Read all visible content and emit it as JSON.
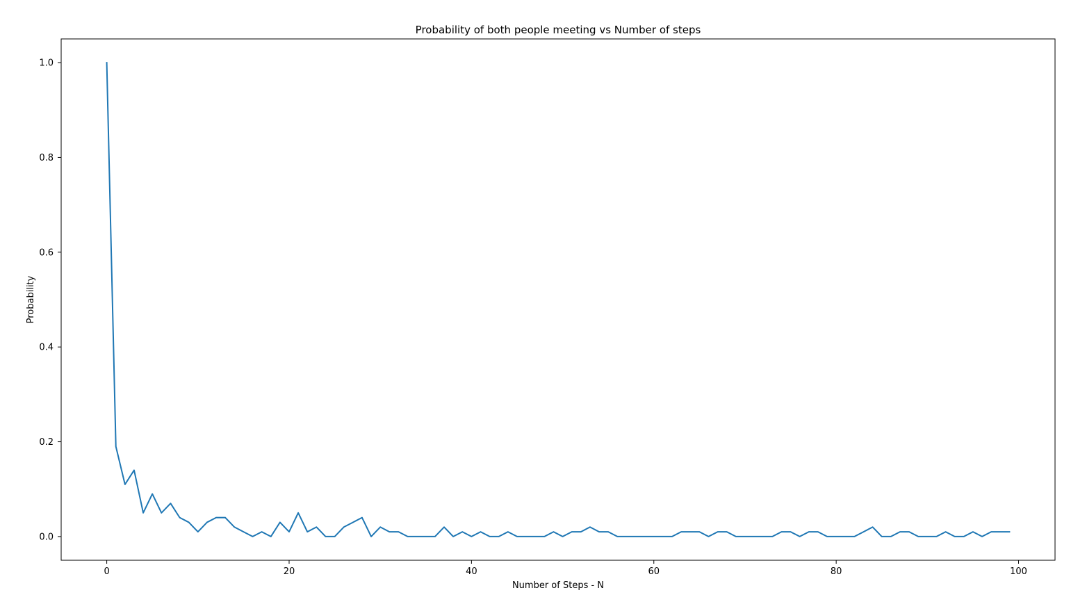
{
  "chart_data": {
    "type": "line",
    "title": "Probability of both people meeting vs Number of steps",
    "xlabel": "Number of Steps - N",
    "ylabel": "Probability",
    "xlim": [
      -5,
      104
    ],
    "ylim": [
      -0.05,
      1.05
    ],
    "xticks": [
      0,
      20,
      40,
      60,
      80,
      100
    ],
    "yticks": [
      0.0,
      0.2,
      0.4,
      0.6,
      0.8,
      1.0
    ],
    "xtick_labels": [
      "0",
      "20",
      "40",
      "60",
      "80",
      "100"
    ],
    "ytick_labels": [
      "0.0",
      "0.2",
      "0.4",
      "0.6",
      "0.8",
      "1.0"
    ],
    "grid": false,
    "line_color": "#1f77b4",
    "series": [
      {
        "name": "probability",
        "x": [
          0,
          1,
          2,
          3,
          4,
          5,
          6,
          7,
          8,
          9,
          10,
          11,
          12,
          13,
          14,
          15,
          16,
          17,
          18,
          19,
          20,
          21,
          22,
          23,
          24,
          25,
          26,
          27,
          28,
          29,
          30,
          31,
          32,
          33,
          34,
          35,
          36,
          37,
          38,
          39,
          40,
          41,
          42,
          43,
          44,
          45,
          46,
          47,
          48,
          49,
          50,
          51,
          52,
          53,
          54,
          55,
          56,
          57,
          58,
          59,
          60,
          61,
          62,
          63,
          64,
          65,
          66,
          67,
          68,
          69,
          70,
          71,
          72,
          73,
          74,
          75,
          76,
          77,
          78,
          79,
          80,
          81,
          82,
          83,
          84,
          85,
          86,
          87,
          88,
          89,
          90,
          91,
          92,
          93,
          94,
          95,
          96,
          97,
          98,
          99
        ],
        "values": [
          1.0,
          0.19,
          0.11,
          0.14,
          0.05,
          0.09,
          0.05,
          0.07,
          0.04,
          0.03,
          0.01,
          0.03,
          0.04,
          0.04,
          0.02,
          0.01,
          0.0,
          0.01,
          0.0,
          0.03,
          0.01,
          0.05,
          0.01,
          0.02,
          0.0,
          0.0,
          0.02,
          0.03,
          0.04,
          0.0,
          0.02,
          0.01,
          0.01,
          0.0,
          0.0,
          0.0,
          0.0,
          0.02,
          0.0,
          0.01,
          0.0,
          0.01,
          0.0,
          0.0,
          0.01,
          0.0,
          0.0,
          0.0,
          0.0,
          0.01,
          0.0,
          0.01,
          0.01,
          0.02,
          0.01,
          0.01,
          0.0,
          0.0,
          0.0,
          0.0,
          0.0,
          0.0,
          0.0,
          0.01,
          0.01,
          0.01,
          0.0,
          0.01,
          0.01,
          0.0,
          0.0,
          0.0,
          0.0,
          0.0,
          0.01,
          0.01,
          0.0,
          0.01,
          0.01,
          0.0,
          0.0,
          0.0,
          0.0,
          0.01,
          0.02,
          0.0,
          0.0,
          0.01,
          0.01,
          0.0,
          0.0,
          0.0,
          0.01,
          0.0,
          0.0,
          0.01,
          0.0,
          0.01,
          0.01,
          0.01
        ]
      }
    ]
  }
}
